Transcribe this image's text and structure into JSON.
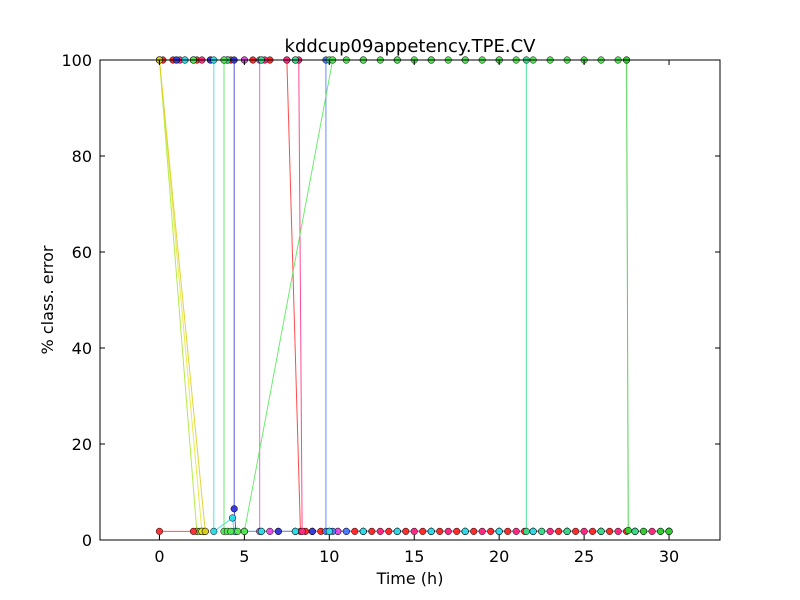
{
  "chart_data": {
    "type": "line",
    "title": "kddcup09appetency.TPE.CV",
    "xlabel": "Time (h)",
    "ylabel": "% class. error",
    "xlim": [
      -3.5,
      33
    ],
    "ylim": [
      0,
      100
    ],
    "xticks": [
      0,
      5,
      10,
      15,
      20,
      25,
      30
    ],
    "yticks": [
      0,
      20,
      40,
      60,
      80,
      100
    ],
    "xtick_labels": [
      "0",
      "5",
      "10",
      "15",
      "20",
      "25",
      "30"
    ],
    "ytick_labels": [
      "0",
      "20",
      "40",
      "60",
      "80",
      "100"
    ],
    "grid": false,
    "legend": "none",
    "series": [
      {
        "color": "#ff2a2a",
        "x": [
          0,
          0.2,
          0.8,
          1.5,
          2.2,
          3.0,
          4.2,
          5.5,
          6.5,
          7.5
        ],
        "y": [
          100,
          100,
          100,
          100,
          100,
          100,
          100,
          100,
          100,
          100
        ],
        "x2": [
          8.3,
          8.6,
          9.5,
          10.5,
          11.5,
          12.5,
          13.5,
          14.5,
          15.5,
          16.5,
          17.5,
          18.5,
          19.5,
          20.5,
          21.5,
          22.5,
          23.5,
          24.5,
          25.5,
          26.5,
          27.5,
          28.5,
          29.5,
          30
        ],
        "y2": [
          1.8,
          1.8,
          1.8,
          1.8,
          1.8,
          1.8,
          1.8,
          1.8,
          1.8,
          1.8,
          1.8,
          1.8,
          1.8,
          1.8,
          1.8,
          1.8,
          1.8,
          1.8,
          1.8,
          1.8,
          1.8,
          1.8,
          1.8,
          1.8
        ]
      },
      {
        "color": "#ff2a80",
        "x": [
          0,
          1.2,
          2.5,
          3.8,
          5.0,
          6.2,
          7.5,
          8.2
        ],
        "y": [
          100,
          100,
          100,
          100,
          100,
          100,
          100,
          100
        ],
        "x2": [
          8.4,
          9.0,
          10.0,
          11.0,
          12.0,
          13.0,
          14.0,
          15.0,
          16.0,
          17.0,
          18.0,
          19.0,
          20.0,
          21.0,
          22.0,
          23.0,
          24.0,
          25.0,
          26.0,
          27.0,
          28.0,
          29.0,
          30.0
        ],
        "y2": [
          1.8,
          1.8,
          1.8,
          1.8,
          1.8,
          1.8,
          1.8,
          1.8,
          1.8,
          1.8,
          1.8,
          1.8,
          1.8,
          1.8,
          1.8,
          1.8,
          1.8,
          1.8,
          1.8,
          1.8,
          1.8,
          1.8,
          1.8
        ]
      },
      {
        "color": "#e64ce6",
        "x": [
          0,
          1.0,
          2.0,
          3.0,
          4.0,
          5.0,
          5.9
        ],
        "y": [
          100,
          100,
          100,
          100,
          100,
          100,
          100
        ],
        "x2": [
          5.9,
          6.5,
          7.0,
          8.0,
          9.0,
          10.5,
          12.0,
          14.0,
          16.0,
          18.0,
          20.0,
          22.0,
          24.0,
          26.0,
          28.0,
          30.0
        ],
        "y2": [
          1.8,
          1.8,
          1.8,
          1.8,
          1.8,
          1.8,
          1.8,
          1.8,
          1.8,
          1.8,
          1.8,
          1.8,
          1.8,
          1.8,
          1.8,
          1.8
        ]
      },
      {
        "color": "#3a3ad9",
        "x": [
          0,
          1.0,
          2.0,
          3.0,
          4.0,
          4.4
        ],
        "y": [
          100,
          100,
          100,
          100,
          100,
          100
        ],
        "x2": [
          4.4,
          4.5,
          5.0,
          6.0,
          7.0,
          8.0,
          9.0,
          10.0,
          12.0,
          14.0,
          16.0,
          18.0,
          20.0,
          22.0,
          24.0,
          26.0,
          28.0,
          30.0
        ],
        "y2": [
          6.5,
          1.8,
          1.8,
          1.8,
          1.8,
          1.8,
          1.8,
          1.8,
          1.8,
          1.8,
          1.8,
          1.8,
          1.8,
          1.8,
          1.8,
          1.8,
          1.8,
          1.8
        ]
      },
      {
        "color": "#4a7aff",
        "x": [
          0,
          2.0,
          4.0,
          6.0,
          8.0,
          9.8
        ],
        "y": [
          100,
          100,
          100,
          100,
          100,
          100
        ],
        "x2": [
          9.8,
          10.2,
          11.0,
          12.0,
          14.0,
          16.0,
          18.0,
          20.0,
          22.0,
          24.0,
          26.0,
          28.0,
          30.0
        ],
        "y2": [
          1.8,
          1.8,
          1.8,
          1.8,
          1.8,
          1.8,
          1.8,
          1.8,
          1.8,
          1.8,
          1.8,
          1.8,
          1.8
        ]
      },
      {
        "color": "#30d9e6",
        "x": [
          0,
          1.5,
          3.2
        ],
        "y": [
          100,
          100,
          100
        ],
        "x2": [
          3.2,
          4.3,
          4.4,
          5.0,
          6.0,
          8.0,
          10.0,
          12.0,
          14.0,
          16.0,
          18.0,
          20.0,
          22.0,
          24.0,
          26.0,
          28.0,
          30.0
        ],
        "y2": [
          1.8,
          4.6,
          1.8,
          1.8,
          1.8,
          1.8,
          1.8,
          1.8,
          1.8,
          1.8,
          1.8,
          1.8,
          1.8,
          1.8,
          1.8,
          1.8,
          1.8
        ]
      },
      {
        "color": "#3ad98a",
        "x": [
          0,
          2.0,
          4.0,
          6.0,
          8.0,
          10.0,
          12.0,
          14.0,
          16.0,
          18.0,
          20.0,
          21.6
        ],
        "y": [
          100,
          100,
          100,
          100,
          100,
          100,
          100,
          100,
          100,
          100,
          100,
          100
        ],
        "x2": [
          21.6,
          22.5,
          24.0,
          26.0,
          28.0,
          30.0
        ],
        "y2": [
          1.8,
          1.8,
          1.8,
          1.8,
          1.8,
          1.8
        ]
      },
      {
        "color": "#55e655",
        "x": [
          0,
          2.0,
          3.8
        ],
        "y": [
          100,
          100,
          100
        ],
        "x2": [
          3.8,
          4.0,
          4.2,
          4.6,
          5.0
        ],
        "y2": [
          1.8,
          1.8,
          1.8,
          1.8,
          1.8
        ],
        "x3": [
          10.2,
          11.0,
          12.0,
          13.0,
          14.0,
          15.0,
          16.0,
          17.0,
          18.0,
          19.0,
          20.0,
          21.0,
          22.0,
          23.0,
          24.0,
          25.0,
          26.0,
          27.0,
          27.5
        ],
        "y3": [
          100,
          100,
          100,
          100,
          100,
          100,
          100,
          100,
          100,
          100,
          100,
          100,
          100,
          100,
          100,
          100,
          100,
          100,
          100
        ]
      },
      {
        "color": "#33cc33",
        "x": [
          27.5,
          27.6,
          28.5,
          29.5,
          30.0
        ],
        "y": [
          100,
          2.0,
          1.8,
          1.8,
          1.8
        ]
      },
      {
        "color": "#a6e62a",
        "x": [
          0,
          2.2
        ],
        "y": [
          100,
          1.8
        ],
        "x2": [
          2.2,
          2.4,
          2.6
        ],
        "y2": [
          1.8,
          1.8,
          1.8
        ]
      },
      {
        "color": "#e6e62a",
        "x": [
          0,
          2.5
        ],
        "y": [
          100,
          1.8
        ],
        "x2": [
          2.5,
          2.7
        ],
        "y2": [
          1.8,
          1.8
        ]
      },
      {
        "color": "#d9cc1a",
        "x": [
          0,
          2.7
        ],
        "y": [
          100,
          1.8
        ]
      },
      {
        "color": "#ff3333",
        "x": [
          0,
          2.0
        ],
        "y": [
          1.8,
          1.8
        ]
      }
    ]
  }
}
